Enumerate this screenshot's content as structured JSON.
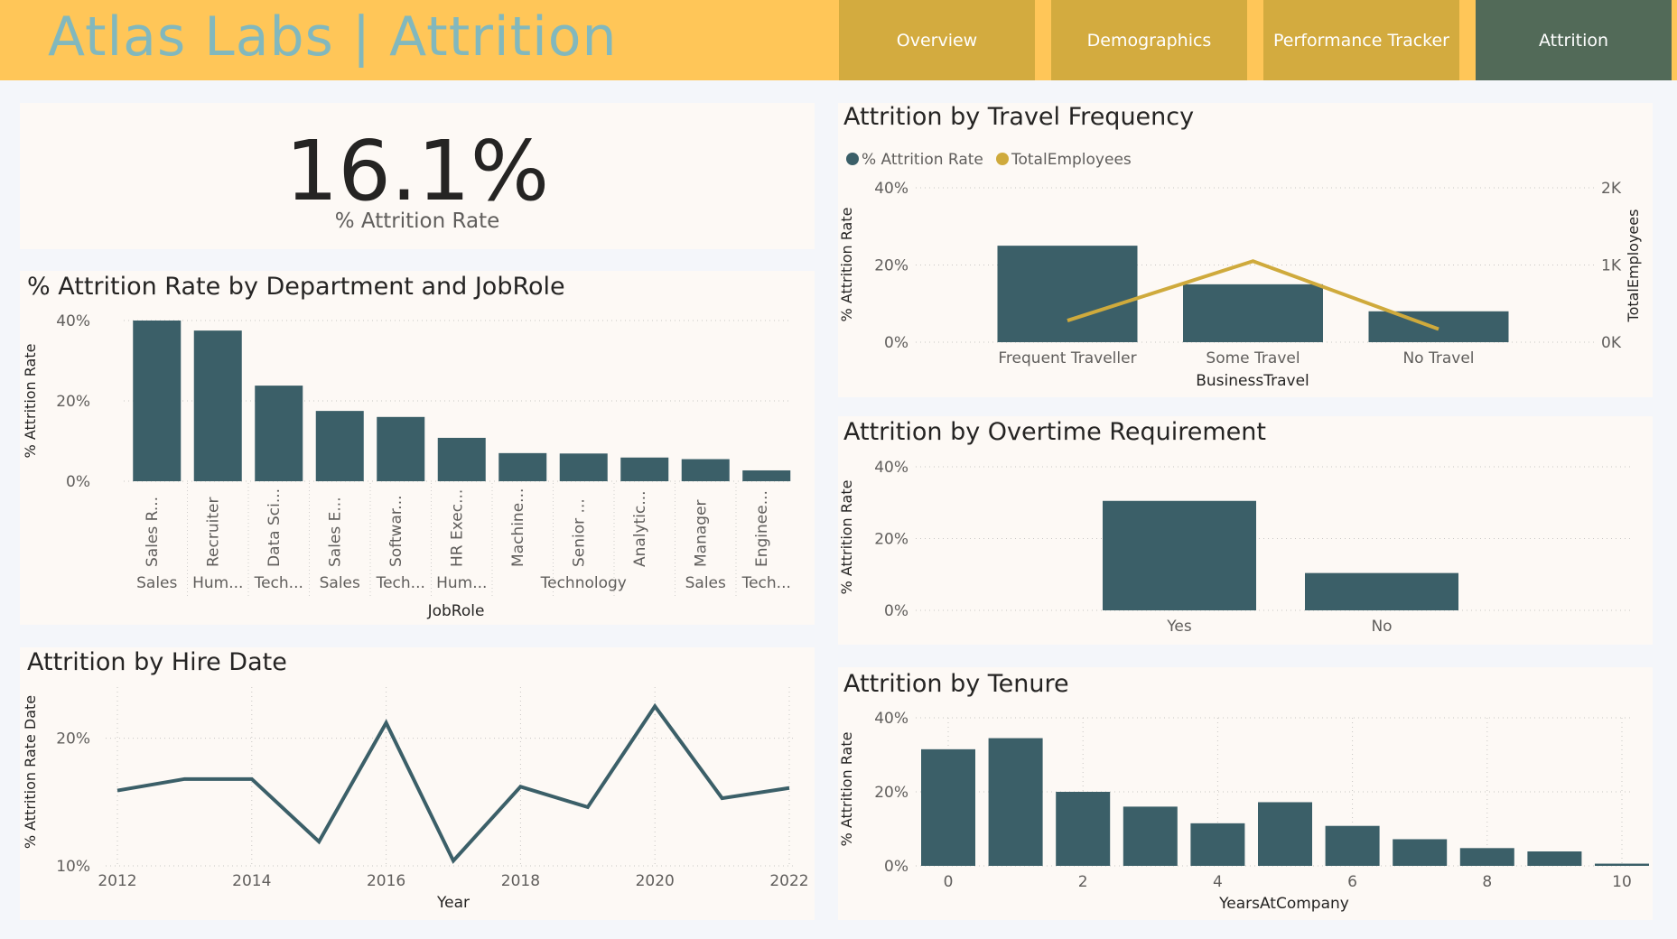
{
  "header": {
    "title": "Atlas Labs | Attrition",
    "nav": [
      {
        "label": "Overview",
        "active": false
      },
      {
        "label": "Demographics",
        "active": false
      },
      {
        "label": "Performance Tracker",
        "active": false
      },
      {
        "label": "Attrition",
        "active": true
      }
    ]
  },
  "colors": {
    "primary": "#3b5f68",
    "secondary": "#cfaa3c",
    "header_bg": "#ffc658",
    "nav_bg": "#d3ab3f",
    "nav_active_bg": "#526a58",
    "title_text": "#82b8bd"
  },
  "kpi": {
    "value": "16.1%",
    "label": "% Attrition Rate"
  },
  "department_chart": {
    "title": "% Attrition Rate by Department and JobRole",
    "chart_data": {
      "type": "bar",
      "title": "% Attrition Rate by Department and JobRole",
      "ylabel": "% Attrition Rate",
      "xlabel": "JobRole",
      "ylim": [
        0,
        40
      ],
      "yticks": [
        "0%",
        "20%",
        "40%"
      ],
      "categories": [
        "Sales R...",
        "Recruiter",
        "Data Sci...",
        "Sales E...",
        "Softwar...",
        "HR Exec...",
        "Machine...",
        "Senior ...",
        "Analytic...",
        "Manager",
        "Enginee..."
      ],
      "departments": [
        "Sales",
        "Hum...",
        "Tech...",
        "Sales",
        "Tech...",
        "Hum...",
        "",
        "Technology",
        "",
        "Sales",
        "Tech..."
      ],
      "values": [
        40,
        37.5,
        23.8,
        17.5,
        16,
        10.8,
        7,
        6.9,
        5.9,
        5.5,
        2.7
      ]
    }
  },
  "hire_chart": {
    "title": "Attrition by Hire Date",
    "chart_data": {
      "type": "line",
      "title": "Attrition by Hire Date",
      "ylabel": "% Attrition Rate Date",
      "xlabel": "Year",
      "ylim": [
        10,
        24
      ],
      "yticks": [
        "10%",
        "20%"
      ],
      "x": [
        2012,
        2013,
        2014,
        2015,
        2016,
        2017,
        2018,
        2019,
        2020,
        2021,
        2022
      ],
      "xticks": [
        "2012",
        "2014",
        "2016",
        "2018",
        "2020",
        "2022"
      ],
      "values": [
        15.9,
        16.8,
        16.8,
        11.9,
        21.2,
        10.4,
        16.2,
        14.6,
        22.5,
        15.3,
        16.1
      ]
    }
  },
  "travel_chart": {
    "title": "Attrition by Travel Frequency",
    "chart_data": {
      "type": "bar",
      "title": "Attrition by Travel Frequency",
      "xlabel": "BusinessTravel",
      "ylabel": "% Attrition Rate",
      "y2label": "TotalEmployees",
      "ylim": [
        0,
        40
      ],
      "y2lim": [
        0,
        2000
      ],
      "yticks": [
        "0%",
        "20%",
        "40%"
      ],
      "y2ticks": [
        "0K",
        "1K",
        "2K"
      ],
      "categories": [
        "Frequent Traveller",
        "Some Travel",
        "No Travel"
      ],
      "legend": [
        {
          "name": "% Attrition Rate",
          "color": "#3b5f68"
        },
        {
          "name": "TotalEmployees",
          "color": "#cfaa3c"
        }
      ],
      "series": [
        {
          "name": "% Attrition Rate",
          "type": "bar",
          "values": [
            25,
            15,
            8
          ]
        },
        {
          "name": "TotalEmployees",
          "type": "line",
          "values": [
            280,
            1050,
            170
          ]
        }
      ]
    }
  },
  "overtime_chart": {
    "title": "Attrition by Overtime Requirement",
    "chart_data": {
      "type": "bar",
      "title": "Attrition by Overtime Requirement",
      "ylabel": "% Attrition Rate",
      "ylim": [
        0,
        40
      ],
      "yticks": [
        "0%",
        "20%",
        "40%"
      ],
      "categories": [
        "Yes",
        "No"
      ],
      "values": [
        30.5,
        10.4
      ]
    }
  },
  "tenure_chart": {
    "title": "Attrition by Tenure",
    "chart_data": {
      "type": "bar",
      "title": "Attrition by Tenure",
      "ylabel": "% Attrition Rate",
      "xlabel": "YearsAtCompany",
      "ylim": [
        0,
        40
      ],
      "yticks": [
        "0%",
        "20%",
        "40%"
      ],
      "x": [
        0,
        1,
        2,
        3,
        4,
        5,
        6,
        7,
        8,
        9,
        10
      ],
      "xticks": [
        "0",
        "2",
        "4",
        "6",
        "8",
        "10"
      ],
      "values": [
        31.5,
        34.5,
        20,
        16,
        11.5,
        17.2,
        10.8,
        7.2,
        4.8,
        3.9,
        0.6
      ]
    }
  }
}
